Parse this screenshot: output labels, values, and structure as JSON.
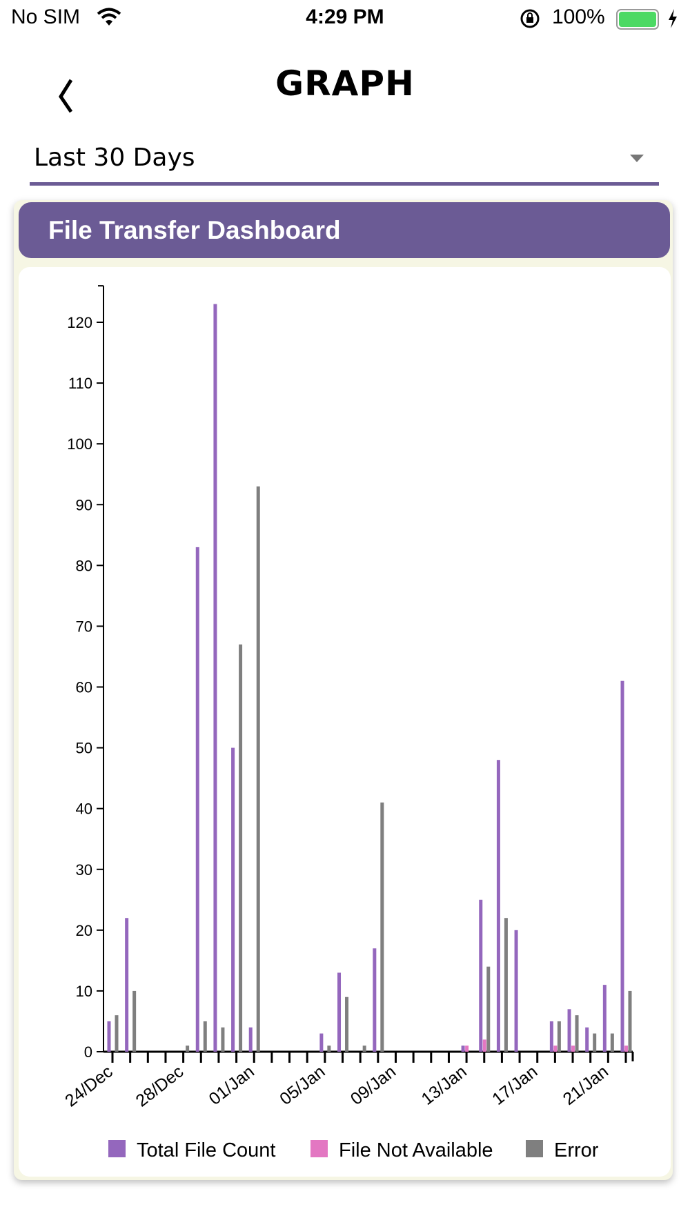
{
  "status_bar": {
    "carrier": "No SIM",
    "time": "4:29 PM",
    "battery": "100%"
  },
  "header": {
    "title": "GRAPH"
  },
  "filter": {
    "selected": "Last 30 Days"
  },
  "card": {
    "title": "File Transfer Dashboard"
  },
  "colors": {
    "accent": "#6b5b95",
    "total": "#9467bd",
    "fna": "#e377c2",
    "error": "#7f7f7f"
  },
  "chart_data": {
    "type": "bar",
    "title": "File Transfer Dashboard",
    "categories": [
      "24/Dec",
      "25/Dec",
      "26/Dec",
      "27/Dec",
      "28/Dec",
      "29/Dec",
      "30/Dec",
      "31/Dec",
      "01/Jan",
      "02/Jan",
      "03/Jan",
      "04/Jan",
      "05/Jan",
      "06/Jan",
      "07/Jan",
      "08/Jan",
      "09/Jan",
      "10/Jan",
      "11/Jan",
      "12/Jan",
      "13/Jan",
      "14/Jan",
      "15/Jan",
      "16/Jan",
      "17/Jan",
      "18/Jan",
      "19/Jan",
      "20/Jan",
      "21/Jan",
      "22/Jan"
    ],
    "tick_labels": [
      "24/Dec",
      "28/Dec",
      "01/Jan",
      "05/Jan",
      "09/Jan",
      "13/Jan",
      "17/Jan",
      "21/Jan"
    ],
    "series": [
      {
        "name": "Total File Count",
        "values": [
          5,
          22,
          0,
          0,
          0,
          83,
          123,
          50,
          4,
          0,
          0,
          0,
          3,
          13,
          0,
          17,
          0,
          0,
          0,
          0,
          1,
          25,
          48,
          20,
          0,
          5,
          7,
          4,
          11,
          61
        ]
      },
      {
        "name": "File Not Available",
        "values": [
          0,
          0,
          0,
          0,
          0,
          0,
          0,
          0,
          0,
          0,
          0,
          0,
          0,
          0,
          0,
          0,
          0,
          0,
          0,
          0,
          1,
          2,
          0,
          0,
          0,
          1,
          1,
          0,
          0,
          1
        ]
      },
      {
        "name": "Error",
        "values": [
          6,
          10,
          0,
          0,
          1,
          5,
          4,
          67,
          93,
          0,
          0,
          0,
          1,
          9,
          1,
          41,
          0,
          0,
          0,
          0,
          0,
          14,
          22,
          0,
          0,
          5,
          6,
          3,
          3,
          10
        ]
      }
    ],
    "yticks": [
      0,
      10,
      20,
      30,
      40,
      50,
      60,
      70,
      80,
      90,
      100,
      110,
      120
    ],
    "ylim": [
      0,
      126
    ],
    "xlabel": "",
    "ylabel": "",
    "grid": false,
    "legend": "bottom"
  }
}
